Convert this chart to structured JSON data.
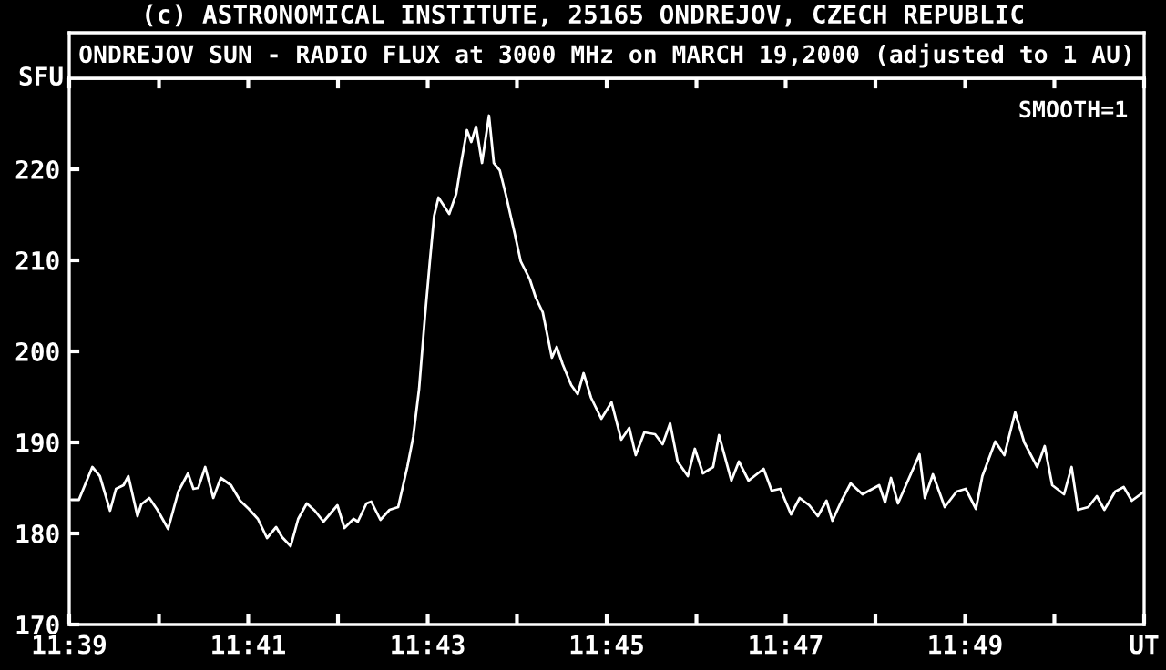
{
  "chart_data": {
    "type": "line",
    "title": "(c) ASTRONOMICAL INSTITUTE, 25165 ONDREJOV, CZECH REPUBLIC",
    "subtitle": "ONDREJOV SUN - RADIO FLUX at 3000 MHz on MARCH 19,2000 (adjusted to 1 AU)",
    "ylabel": "SFU",
    "annotations": [
      "SMOOTH=1"
    ],
    "xlim": [
      11.65,
      11.85
    ],
    "xticks": [
      {
        "value": 11.65,
        "label": "11:39"
      },
      {
        "value": 11.6667,
        "label": null
      },
      {
        "value": 11.6833,
        "label": "11:41"
      },
      {
        "value": 11.7,
        "label": null
      },
      {
        "value": 11.7167,
        "label": "11:43"
      },
      {
        "value": 11.7333,
        "label": null
      },
      {
        "value": 11.75,
        "label": "11:45"
      },
      {
        "value": 11.7667,
        "label": null
      },
      {
        "value": 11.7833,
        "label": "11:47"
      },
      {
        "value": 11.8,
        "label": null
      },
      {
        "value": 11.8167,
        "label": "11:49"
      },
      {
        "value": 11.8333,
        "label": null
      },
      {
        "value": 11.85,
        "label": "UT"
      }
    ],
    "ylim": [
      170,
      230
    ],
    "yticks": [
      170,
      180,
      190,
      200,
      210,
      220
    ],
    "grid": false,
    "legend": false,
    "series": [
      {
        "color": "#ffffff",
        "x": [
          11.6504,
          11.6518,
          11.6543,
          11.6557,
          11.6576,
          11.6587,
          11.6601,
          11.661,
          11.6627,
          11.6634,
          11.6649,
          11.6664,
          11.6684,
          11.6703,
          11.6721,
          11.6731,
          11.674,
          11.6753,
          11.6768,
          11.6782,
          11.6801,
          11.6818,
          11.6834,
          11.6851,
          11.6868,
          11.6885,
          11.6896,
          11.6912,
          11.6926,
          11.6942,
          11.6957,
          11.6973,
          11.6999,
          11.7012,
          11.7029,
          11.7037,
          11.7053,
          11.7062,
          11.7079,
          11.7096,
          11.7112,
          11.7129,
          11.714,
          11.7151,
          11.7162,
          11.7171,
          11.7179,
          11.7187,
          11.7207,
          11.722,
          11.7229,
          11.724,
          11.7248,
          11.7257,
          11.7268,
          11.7281,
          11.729,
          11.7301,
          11.7312,
          11.7329,
          11.734,
          11.7357,
          11.7368,
          11.7381,
          11.7398,
          11.7407,
          11.7418,
          11.7434,
          11.7446,
          11.7457,
          11.7471,
          11.749,
          11.7509,
          11.7527,
          11.7542,
          11.7554,
          11.757,
          11.759,
          11.7604,
          11.7618,
          11.7632,
          11.7651,
          11.7664,
          11.7679,
          11.7698,
          11.7709,
          11.7732,
          11.7746,
          11.7764,
          11.7792,
          11.7807,
          11.7823,
          11.7843,
          11.7859,
          11.7877,
          11.7893,
          11.7909,
          11.792,
          11.7937,
          11.7954,
          11.7976,
          11.8007,
          11.8018,
          11.8029,
          11.8042,
          11.8062,
          11.8082,
          11.8092,
          11.8107,
          11.8129,
          11.8151,
          11.8168,
          11.8187,
          11.8199,
          11.8223,
          11.824,
          11.826,
          11.8277,
          11.8301,
          11.8315,
          11.8329,
          11.8351,
          11.8365,
          11.8377,
          11.8396,
          11.8412,
          11.8426,
          11.8446,
          11.8462,
          11.8477,
          11.85
        ],
        "values": [
          183.7,
          183.7,
          187.3,
          186.3,
          182.5,
          184.9,
          185.3,
          186.3,
          181.9,
          183.2,
          183.9,
          182.6,
          180.5,
          184.6,
          186.6,
          184.9,
          185.0,
          187.3,
          183.9,
          186.1,
          185.3,
          183.6,
          182.7,
          181.6,
          179.5,
          180.7,
          179.6,
          178.6,
          181.6,
          183.3,
          182.5,
          181.3,
          183.1,
          180.6,
          181.6,
          181.3,
          183.3,
          183.5,
          181.5,
          182.6,
          182.9,
          187.3,
          190.6,
          195.9,
          203.9,
          209.9,
          214.9,
          216.9,
          215.1,
          217.3,
          220.6,
          224.3,
          223.0,
          224.7,
          220.7,
          225.9,
          220.7,
          219.9,
          217.3,
          212.9,
          209.9,
          207.9,
          205.9,
          204.3,
          199.3,
          200.5,
          198.6,
          196.3,
          195.3,
          197.6,
          194.9,
          192.6,
          194.4,
          190.3,
          191.6,
          188.6,
          191.1,
          190.9,
          189.8,
          192.1,
          187.9,
          186.3,
          189.3,
          186.6,
          187.3,
          190.8,
          185.8,
          187.9,
          185.8,
          187.1,
          184.7,
          184.9,
          182.1,
          183.9,
          183.1,
          181.9,
          183.6,
          181.4,
          183.6,
          185.5,
          184.3,
          185.3,
          183.4,
          186.1,
          183.3,
          186.0,
          188.7,
          183.9,
          186.5,
          182.9,
          184.6,
          184.9,
          182.7,
          186.3,
          190.1,
          188.6,
          193.3,
          190.0,
          187.3,
          189.6,
          185.3,
          184.3,
          187.3,
          182.6,
          182.9,
          184.1,
          182.6,
          184.6,
          185.1,
          183.6,
          184.6
        ]
      }
    ]
  }
}
